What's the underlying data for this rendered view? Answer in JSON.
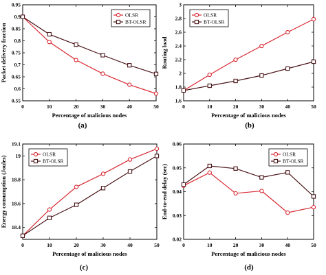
{
  "figure": {
    "series_colors": {
      "olsr": "#d8262f",
      "bt_olsr": "#4a1418"
    },
    "charts": [
      {
        "type": "line",
        "panel_label": "(a)",
        "xlabel": "Percentage of malicious nodes",
        "ylabel": "Packet delivery fraction",
        "x": [
          0,
          10,
          20,
          30,
          40,
          50
        ],
        "xlim": [
          0,
          50
        ],
        "ylim": [
          0.55,
          0.95
        ],
        "xticks": [
          "0",
          "10",
          "20",
          "30",
          "40",
          "50"
        ],
        "yticks": [
          "0.55",
          "0.6",
          "0.65",
          "0.7",
          "0.75",
          "0.8",
          "0.85",
          "0.9",
          "0.95"
        ],
        "ytick_values": [
          0.55,
          0.6,
          0.65,
          0.7,
          0.75,
          0.8,
          0.85,
          0.9,
          0.95
        ],
        "legend_position": "top-right",
        "series": [
          {
            "name": "OLSR",
            "marker": "circle",
            "values": [
              0.9,
              0.795,
              0.72,
              0.663,
              0.617,
              0.58
            ]
          },
          {
            "name": "BT-OLSR",
            "marker": "square",
            "values": [
              0.9,
              0.827,
              0.784,
              0.74,
              0.698,
              0.662
            ]
          }
        ]
      },
      {
        "type": "line",
        "panel_label": "(b)",
        "xlabel": "Percentage of malicious nodes",
        "ylabel": "Routing load",
        "x": [
          0,
          10,
          20,
          30,
          40,
          50
        ],
        "xlim": [
          0,
          50
        ],
        "ylim": [
          1.6,
          3.0
        ],
        "xticks": [
          "0",
          "10",
          "20",
          "30",
          "40",
          "50"
        ],
        "yticks": [
          "1.6",
          "1.8",
          "2",
          "2.2",
          "2.4",
          "2.6",
          "2.8",
          "3"
        ],
        "ytick_values": [
          1.6,
          1.8,
          2.0,
          2.2,
          2.4,
          2.6,
          2.8,
          3.0
        ],
        "legend_position": "top-left",
        "series": [
          {
            "name": "OLSR",
            "marker": "circle",
            "values": [
              1.75,
              1.98,
              2.2,
              2.4,
              2.6,
              2.79
            ]
          },
          {
            "name": "BT-OLSR",
            "marker": "square",
            "values": [
              1.75,
              1.82,
              1.89,
              1.97,
              2.07,
              2.17
            ]
          }
        ]
      },
      {
        "type": "line",
        "panel_label": "(c)",
        "xlabel": "Percentage of malicious nodes",
        "ylabel": "Energy consumption (Joules)",
        "x": [
          0,
          10,
          20,
          30,
          40,
          50
        ],
        "xlim": [
          0,
          50
        ],
        "ylim": [
          18.3,
          19.1
        ],
        "xticks": [
          "0",
          "10",
          "20",
          "30",
          "40",
          "50"
        ],
        "yticks": [
          "18.4",
          "18.6",
          "18.8",
          "19",
          "19.1"
        ],
        "ytick_values": [
          18.4,
          18.6,
          18.8,
          19.0,
          19.1
        ],
        "legend_position": "top-left",
        "series": [
          {
            "name": "OLSR",
            "marker": "circle",
            "values": [
              18.33,
              18.55,
              18.74,
              18.85,
              18.97,
              19.06
            ]
          },
          {
            "name": "BT-OLSR",
            "marker": "square",
            "values": [
              18.33,
              18.48,
              18.59,
              18.73,
              18.87,
              19.0
            ]
          }
        ]
      },
      {
        "type": "line",
        "panel_label": "(d)",
        "xlabel": "Percentage of malicious nodes",
        "ylabel": "End-to-end delay (sec)",
        "x": [
          0,
          10,
          20,
          30,
          40,
          50
        ],
        "xlim": [
          0,
          50
        ],
        "ylim": [
          0.02,
          0.06
        ],
        "xticks": [
          "0",
          "10",
          "20",
          "30",
          "40",
          "50"
        ],
        "yticks": [
          "0.02",
          "0.03",
          "0.04",
          "0.05",
          "0.06"
        ],
        "ytick_values": [
          0.02,
          0.03,
          0.04,
          0.05,
          0.06
        ],
        "legend_position": "top-right",
        "series": [
          {
            "name": "OLSR",
            "marker": "circle",
            "values": [
              0.0425,
              0.048,
              0.0393,
              0.0403,
              0.0312,
              0.0335
            ]
          },
          {
            "name": "BT-OLSR",
            "marker": "square",
            "values": [
              0.043,
              0.0508,
              0.0497,
              0.046,
              0.0481,
              0.038
            ]
          }
        ]
      }
    ]
  },
  "chart_data": [
    {
      "type": "line",
      "panel_label": "(a)",
      "xlabel": "Percentage of malicious nodes",
      "ylabel": "Packet delivery fraction",
      "x": [
        0,
        10,
        20,
        30,
        40,
        50
      ],
      "xlim": [
        0,
        50
      ],
      "ylim": [
        0.55,
        0.95
      ],
      "legend": "top-right",
      "grid": false,
      "series": [
        {
          "name": "OLSR",
          "values": [
            0.9,
            0.795,
            0.72,
            0.663,
            0.617,
            0.58
          ]
        },
        {
          "name": "BT-OLSR",
          "values": [
            0.9,
            0.827,
            0.784,
            0.74,
            0.698,
            0.662
          ]
        }
      ]
    },
    {
      "type": "line",
      "panel_label": "(b)",
      "xlabel": "Percentage of malicious nodes",
      "ylabel": "Routing load",
      "x": [
        0,
        10,
        20,
        30,
        40,
        50
      ],
      "xlim": [
        0,
        50
      ],
      "ylim": [
        1.6,
        3.0
      ],
      "legend": "top-left",
      "grid": false,
      "series": [
        {
          "name": "OLSR",
          "values": [
            1.75,
            1.98,
            2.2,
            2.4,
            2.6,
            2.79
          ]
        },
        {
          "name": "BT-OLSR",
          "values": [
            1.75,
            1.82,
            1.89,
            1.97,
            2.07,
            2.17
          ]
        }
      ]
    },
    {
      "type": "line",
      "panel_label": "(c)",
      "xlabel": "Percentage of malicious nodes",
      "ylabel": "Energy consumption (Joules)",
      "x": [
        0,
        10,
        20,
        30,
        40,
        50
      ],
      "xlim": [
        0,
        50
      ],
      "ylim": [
        18.3,
        19.1
      ],
      "legend": "top-left",
      "grid": false,
      "series": [
        {
          "name": "OLSR",
          "values": [
            18.33,
            18.55,
            18.74,
            18.85,
            18.97,
            19.06
          ]
        },
        {
          "name": "BT-OLSR",
          "values": [
            18.33,
            18.48,
            18.59,
            18.73,
            18.87,
            19.0
          ]
        }
      ]
    },
    {
      "type": "line",
      "panel_label": "(d)",
      "xlabel": "Percentage of malicious nodes",
      "ylabel": "End-to-end delay (sec)",
      "x": [
        0,
        10,
        20,
        30,
        40,
        50
      ],
      "xlim": [
        0,
        50
      ],
      "ylim": [
        0.02,
        0.06
      ],
      "legend": "top-right",
      "grid": false,
      "series": [
        {
          "name": "OLSR",
          "values": [
            0.0425,
            0.048,
            0.0393,
            0.0403,
            0.0312,
            0.0335
          ]
        },
        {
          "name": "BT-OLSR",
          "values": [
            0.043,
            0.0508,
            0.0497,
            0.046,
            0.0481,
            0.038
          ]
        }
      ]
    }
  ]
}
